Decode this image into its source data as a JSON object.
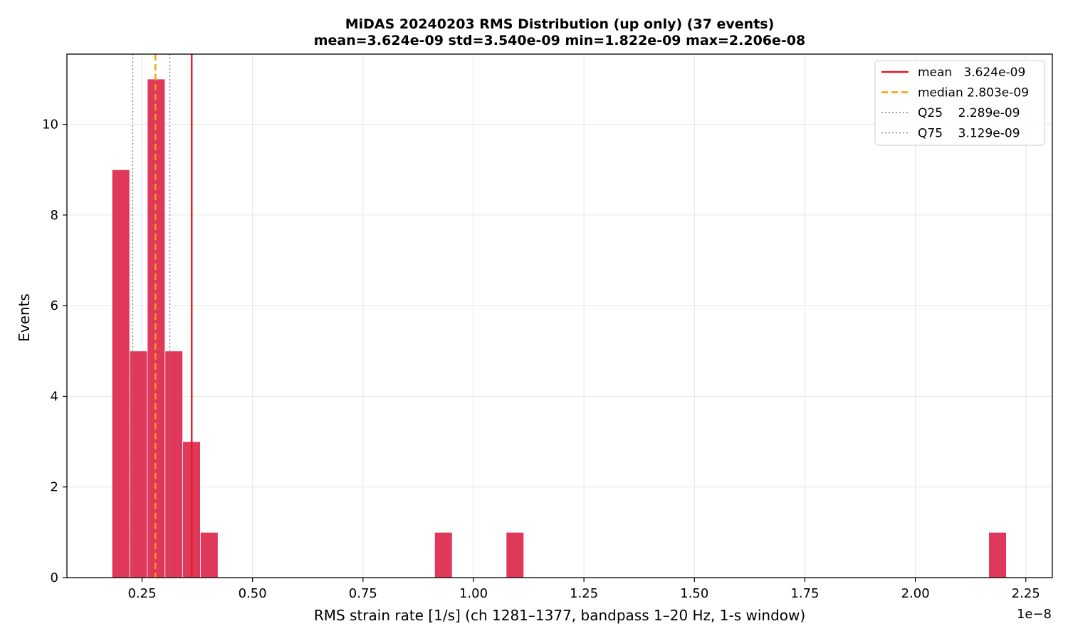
{
  "chart_data": {
    "type": "bar",
    "title": "MiDAS 20240203  RMS Distribution  (up only)  (37 events)",
    "subtitle": "mean=3.624e-09  std=3.540e-09  min=1.822e-09  max=2.206e-08",
    "xlabel": "RMS strain rate [1/s]  (ch 1281–1377, bandpass 1–20 Hz, 1-s window)",
    "ylabel": "Events",
    "x_offset_label": "1e−8",
    "xlim": [
      0.08,
      2.31
    ],
    "ylim": [
      0,
      11.55
    ],
    "x_ticks": [
      {
        "value": 0.25,
        "label": "0.25"
      },
      {
        "value": 0.5,
        "label": "0.50"
      },
      {
        "value": 0.75,
        "label": "0.75"
      },
      {
        "value": 1.0,
        "label": "1.00"
      },
      {
        "value": 1.25,
        "label": "1.25"
      },
      {
        "value": 1.5,
        "label": "1.50"
      },
      {
        "value": 1.75,
        "label": "1.75"
      },
      {
        "value": 2.0,
        "label": "2.00"
      },
      {
        "value": 2.25,
        "label": "2.25"
      }
    ],
    "y_ticks": [
      {
        "value": 0,
        "label": "0"
      },
      {
        "value": 2,
        "label": "2"
      },
      {
        "value": 4,
        "label": "4"
      },
      {
        "value": 6,
        "label": "6"
      },
      {
        "value": 8,
        "label": "8"
      },
      {
        "value": 10,
        "label": "10"
      }
    ],
    "grid": true,
    "bar_color": "#e0385a",
    "bins": [
      {
        "x0": 0.182,
        "x1": 0.222,
        "count": 9
      },
      {
        "x0": 0.222,
        "x1": 0.262,
        "count": 5
      },
      {
        "x0": 0.262,
        "x1": 0.302,
        "count": 11
      },
      {
        "x0": 0.302,
        "x1": 0.342,
        "count": 5
      },
      {
        "x0": 0.342,
        "x1": 0.382,
        "count": 3
      },
      {
        "x0": 0.382,
        "x1": 0.422,
        "count": 1
      },
      {
        "x0": 0.912,
        "x1": 0.952,
        "count": 1
      },
      {
        "x0": 1.074,
        "x1": 1.114,
        "count": 1
      },
      {
        "x0": 2.166,
        "x1": 2.206,
        "count": 1
      }
    ],
    "reference_lines": [
      {
        "name": "mean",
        "value_label": "3.624e-09",
        "x": 0.3624,
        "color": "#e8191c",
        "style": "solid"
      },
      {
        "name": "median",
        "value_label": "2.803e-09",
        "x": 0.2803,
        "color": "#f5a00f",
        "style": "dashed"
      },
      {
        "name": "Q25",
        "value_label": "2.289e-09",
        "x": 0.2289,
        "color": "#808080",
        "style": "dotted"
      },
      {
        "name": "Q75",
        "value_label": "3.129e-09",
        "x": 0.3129,
        "color": "#808080",
        "style": "dotted"
      }
    ],
    "legend": {
      "placement": "top-right",
      "entries": [
        {
          "label": "mean   3.624e-09",
          "color": "#e8191c",
          "style": "solid"
        },
        {
          "label": "median 2.803e-09",
          "color": "#f5a00f",
          "style": "dashed"
        },
        {
          "label": "Q25    2.289e-09",
          "color": "#808080",
          "style": "dotted"
        },
        {
          "label": "Q75    3.129e-09",
          "color": "#808080",
          "style": "dotted"
        }
      ]
    }
  }
}
